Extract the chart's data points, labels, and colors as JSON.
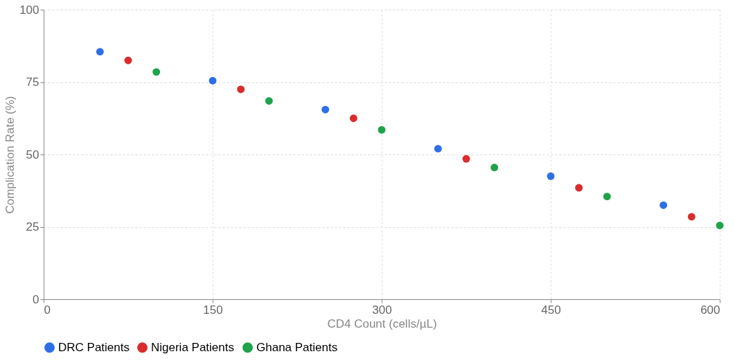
{
  "chart_data": {
    "type": "scatter",
    "xlabel": "CD4 Count (cells/µL)",
    "ylabel": "Complication Rate (%)",
    "xlim": [
      0,
      600
    ],
    "ylim": [
      0,
      100
    ],
    "xticks": [
      0,
      150,
      300,
      450,
      600
    ],
    "yticks": [
      0,
      25,
      50,
      75,
      100
    ],
    "grid": true,
    "legend": "bottom",
    "marker": "circle",
    "series": [
      {
        "name": "DRC Patients",
        "color": "#2f6fe6",
        "x": [
          50,
          150,
          250,
          350,
          450,
          550
        ],
        "values": [
          85.5,
          75.5,
          65.5,
          52,
          42.5,
          32.5
        ]
      },
      {
        "name": "Nigeria Patients",
        "color": "#d92c2c",
        "x": [
          75,
          175,
          275,
          375,
          475,
          575
        ],
        "values": [
          82.5,
          72.5,
          62.5,
          48.5,
          38.5,
          28.5
        ]
      },
      {
        "name": "Ghana Patients",
        "color": "#1fa34a",
        "x": [
          100,
          200,
          300,
          400,
          500,
          600
        ],
        "values": [
          78.5,
          68.5,
          58.5,
          45.5,
          35.5,
          25.5
        ]
      }
    ]
  }
}
